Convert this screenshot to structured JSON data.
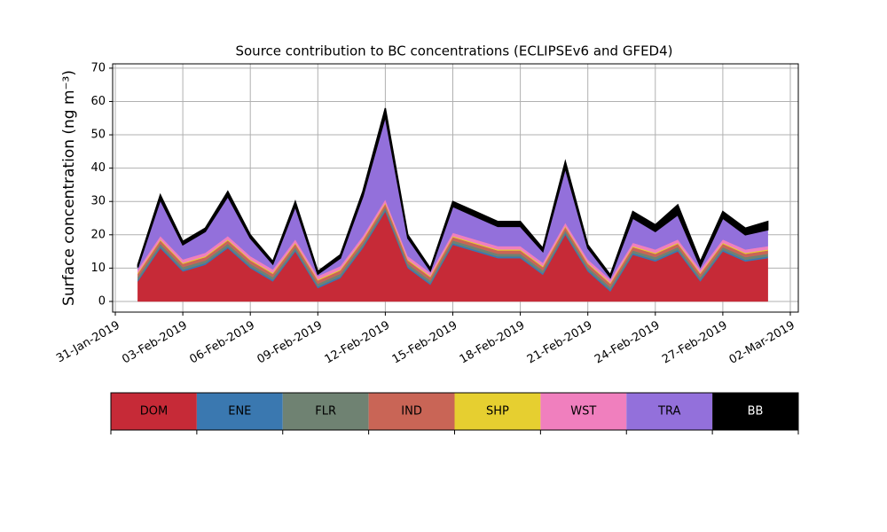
{
  "chart_data": {
    "type": "stacked_area",
    "title": "Source contribution to BC concentrations (ECLIPSEv6 and GFED4)",
    "y_label": "Surface concentration (ng m⁻³)",
    "x": [
      "2019-02-01",
      "2019-02-02",
      "2019-02-03",
      "2019-02-04",
      "2019-02-05",
      "2019-02-06",
      "2019-02-07",
      "2019-02-08",
      "2019-02-09",
      "2019-02-10",
      "2019-02-11",
      "2019-02-12",
      "2019-02-13",
      "2019-02-14",
      "2019-02-15",
      "2019-02-16",
      "2019-02-17",
      "2019-02-18",
      "2019-02-19",
      "2019-02-20",
      "2019-02-21",
      "2019-02-22",
      "2019-02-23",
      "2019-02-24",
      "2019-02-25",
      "2019-02-26",
      "2019-02-27",
      "2019-02-28",
      "2019-03-01"
    ],
    "series": [
      {
        "name": "DOM",
        "color": "#c62a37",
        "values": [
          6,
          16,
          9,
          11,
          16,
          10,
          6,
          15,
          4,
          7,
          16,
          27,
          10,
          5,
          17,
          15,
          13,
          13,
          8,
          20,
          9,
          3,
          14,
          12,
          15,
          6,
          15,
          12,
          13
        ]
      },
      {
        "name": "ENE",
        "color": "#3a78b0",
        "values": [
          0.5,
          0.5,
          0.5,
          0.5,
          0.5,
          0.5,
          0.5,
          0.5,
          0.5,
          0.5,
          0.5,
          0.5,
          0.5,
          0.5,
          0.5,
          0.5,
          0.5,
          0.5,
          0.5,
          0.5,
          0.5,
          0.5,
          0.5,
          0.5,
          0.5,
          0.5,
          0.5,
          0.5,
          0.5
        ]
      },
      {
        "name": "FLR",
        "color": "#6f8272",
        "values": [
          0.8,
          0.8,
          0.8,
          0.8,
          0.8,
          0.8,
          0.8,
          0.8,
          0.8,
          0.8,
          0.8,
          0.8,
          0.8,
          0.8,
          0.8,
          0.8,
          0.8,
          0.8,
          0.8,
          0.8,
          0.8,
          0.8,
          0.8,
          0.8,
          0.8,
          0.8,
          0.8,
          0.8,
          0.8
        ]
      },
      {
        "name": "IND",
        "color": "#c96556",
        "values": [
          1,
          1,
          1,
          1,
          1,
          1,
          1,
          1,
          1,
          1,
          1,
          1,
          1,
          1,
          1,
          1,
          1,
          1,
          1,
          1,
          1,
          1,
          1,
          1,
          1,
          1,
          1,
          1,
          1
        ]
      },
      {
        "name": "SHP",
        "color": "#e6cf30",
        "values": [
          0.3,
          0.3,
          0.3,
          0.3,
          0.3,
          0.3,
          0.3,
          0.3,
          0.3,
          0.3,
          0.3,
          0.3,
          0.3,
          0.3,
          0.3,
          0.3,
          0.3,
          0.3,
          0.3,
          0.3,
          0.3,
          0.3,
          0.3,
          0.3,
          0.3,
          0.3,
          0.3,
          0.3,
          0.3
        ]
      },
      {
        "name": "WST",
        "color": "#f07fbe",
        "values": [
          1,
          1,
          1,
          1,
          1,
          1,
          1,
          1,
          1,
          1,
          1,
          1,
          1,
          1,
          1,
          1,
          1,
          1,
          1,
          1,
          1,
          1,
          1,
          1,
          1,
          1,
          1,
          1,
          1
        ]
      },
      {
        "name": "TRA",
        "color": "#9370db",
        "values": [
          0.6,
          10.9,
          4.4,
          6.4,
          11.9,
          5.4,
          1.6,
          9.9,
          0.6,
          2.4,
          11.9,
          24.9,
          5.4,
          0.6,
          7.9,
          6.9,
          5.9,
          5.9,
          3.4,
          16.4,
          3.4,
          0.6,
          7.4,
          5.4,
          7.4,
          0.9,
          6.4,
          4.4,
          4.9
        ]
      },
      {
        "name": "BB",
        "color": "#000000",
        "values": [
          0.8,
          1.5,
          1,
          1,
          1.5,
          1,
          0.8,
          1.5,
          0.8,
          1,
          1.5,
          2.5,
          1,
          0.8,
          1.5,
          1.5,
          1.5,
          1.5,
          1,
          2,
          1,
          0.8,
          2,
          2,
          3,
          1.5,
          2,
          2,
          2.5
        ]
      }
    ],
    "xlim": [
      "2019-01-31",
      "2019-03-02"
    ],
    "xticks": [
      {
        "value": "2019-01-31",
        "label": "31-Jan-2019"
      },
      {
        "value": "2019-02-03",
        "label": "03-Feb-2019"
      },
      {
        "value": "2019-02-06",
        "label": "06-Feb-2019"
      },
      {
        "value": "2019-02-09",
        "label": "09-Feb-2019"
      },
      {
        "value": "2019-02-12",
        "label": "12-Feb-2019"
      },
      {
        "value": "2019-02-15",
        "label": "15-Feb-2019"
      },
      {
        "value": "2019-02-18",
        "label": "18-Feb-2019"
      },
      {
        "value": "2019-02-21",
        "label": "21-Feb-2019"
      },
      {
        "value": "2019-02-24",
        "label": "24-Feb-2019"
      },
      {
        "value": "2019-02-27",
        "label": "27-Feb-2019"
      },
      {
        "value": "2019-03-02",
        "label": "02-Mar-2019"
      }
    ],
    "ylim": [
      -3.2,
      71.3
    ],
    "yticks": [
      0,
      10,
      20,
      30,
      40,
      50,
      60,
      70
    ],
    "grid": true
  }
}
